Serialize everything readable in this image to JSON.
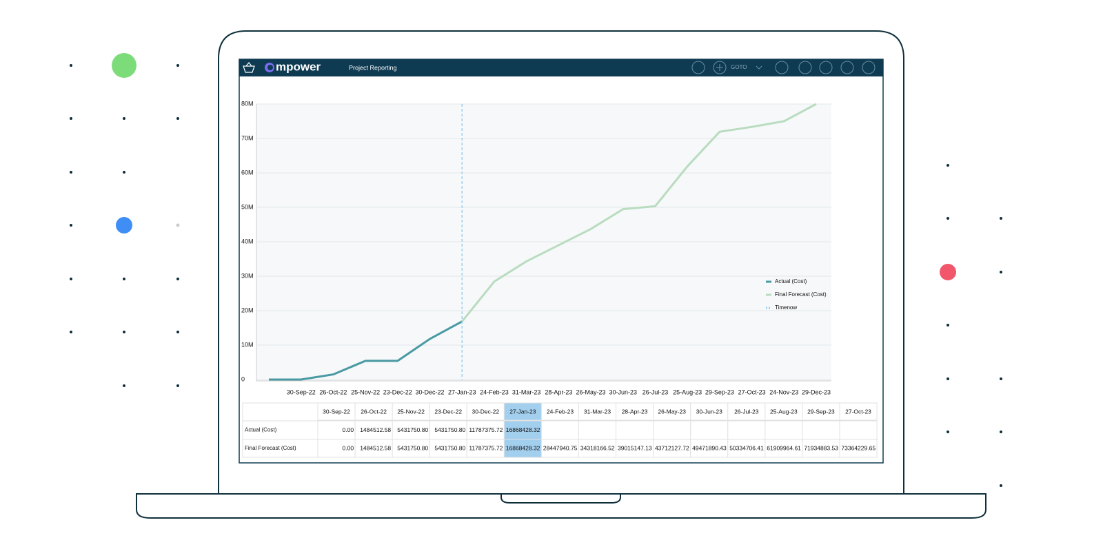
{
  "app": {
    "logo": "mpower",
    "page_title": "Project Reporting",
    "goto": "GOTO"
  },
  "chart_data": {
    "type": "line",
    "categories": [
      null,
      "30-Sep-22",
      "26-Oct-22",
      "25-Nov-22",
      "23-Dec-22",
      "30-Dec-22",
      "27-Jan-23",
      "24-Feb-23",
      "31-Mar-23",
      "28-Apr-23",
      "26-May-23",
      "30-Jun-23",
      "26-Jul-23",
      "25-Aug-23",
      "29-Sep-23",
      "27-Oct-23",
      "24-Nov-23",
      "29-Dec-23"
    ],
    "series": [
      {
        "name": "Actual (Cost)",
        "color": "#4a9aa5",
        "values": [
          0,
          0,
          1484512.58,
          5431750.8,
          5431750.8,
          11787375.72,
          16868428.32,
          null,
          null,
          null,
          null,
          null,
          null,
          null,
          null,
          null,
          null,
          null
        ]
      },
      {
        "name": "Final Forecast (Cost)",
        "color": "#b9dcc0",
        "values": [
          0,
          0,
          1484512.58,
          5431750.8,
          5431750.8,
          11787375.72,
          16868428.32,
          28447940.75,
          34318166.52,
          39015147.13,
          43712127.72,
          49471890.43,
          50334706.41,
          61909964.61,
          71934883.53,
          73364229.65,
          75000000,
          80000000
        ]
      },
      {
        "name": "Timenow",
        "color": "#9fcdee",
        "at": "27-Jan-23"
      }
    ],
    "ylim": [
      0,
      80000000
    ],
    "yticks": [
      0,
      {
        "value": 10000000,
        "label": "10M"
      },
      {
        "value": 20000000,
        "label": "20M"
      },
      {
        "value": 30000000,
        "label": "30M"
      },
      {
        "value": 40000000,
        "label": "40M"
      },
      {
        "value": 50000000,
        "label": "50M"
      },
      {
        "value": 60000000,
        "label": "60M"
      },
      {
        "value": 70000000,
        "label": "70M"
      },
      {
        "value": 80000000,
        "label": "80M"
      }
    ],
    "grid": true
  },
  "table": {
    "columns": [
      "30-Sep-22",
      "26-Oct-22",
      "25-Nov-22",
      "23-Dec-22",
      "30-Dec-22",
      "27-Jan-23",
      "24-Feb-23",
      "31-Mar-23",
      "28-Apr-23",
      "26-May-23",
      "30-Jun-23",
      "26-Jul-23",
      "25-Aug-23",
      "29-Sep-23",
      "27-Oct-23"
    ],
    "rows": [
      {
        "label": "Actual (Cost)",
        "cells": [
          "0.00",
          "1484512.58",
          "5431750.80",
          "5431750.80",
          "11787375.72",
          "16868428.32",
          null,
          null,
          null,
          null,
          null,
          null,
          null,
          null,
          null
        ]
      },
      {
        "label": "Final Forecast (Cost)",
        "cells": [
          "0.00",
          "1484512.58",
          "5431750.80",
          "5431750.80",
          "11787375.72",
          "16868428.32",
          "28447940.75",
          "34318166.52",
          "39015147.13",
          "43712127.72",
          "49471890.43",
          "50334706.41",
          "61909964.61",
          "71934883.53",
          "73364229.65"
        ]
      }
    ]
  }
}
